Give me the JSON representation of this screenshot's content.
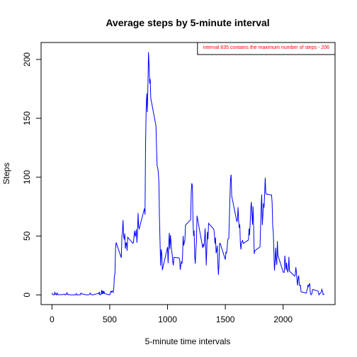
{
  "chart_data": {
    "type": "line",
    "title": "Average steps by 5-minute interval",
    "x_label": "5-minute time intervals",
    "y_label": "Steps",
    "legend_text": "interval 835 contains the maximum number of steps -  206",
    "legend_position": "topright",
    "legend_text_color": "#ff0000",
    "xlim": [
      -94.2,
      2449.2
    ],
    "ylim": [
      -8.25,
      214.4
    ],
    "xticks": [
      0,
      500,
      1000,
      1500,
      2000
    ],
    "yticks": [
      0,
      50,
      100,
      150,
      200
    ],
    "series": [
      {
        "color": "#0000ff",
        "x": [
          0,
          5,
          10,
          15,
          20,
          25,
          30,
          35,
          40,
          45,
          50,
          55,
          100,
          105,
          110,
          115,
          120,
          125,
          130,
          135,
          140,
          145,
          150,
          155,
          200,
          205,
          210,
          215,
          220,
          225,
          230,
          235,
          240,
          245,
          250,
          255,
          300,
          305,
          310,
          315,
          320,
          325,
          330,
          335,
          340,
          345,
          350,
          355,
          400,
          405,
          410,
          415,
          420,
          425,
          430,
          435,
          440,
          445,
          450,
          455,
          500,
          505,
          510,
          515,
          520,
          525,
          530,
          535,
          540,
          545,
          550,
          555,
          600,
          605,
          610,
          615,
          620,
          625,
          630,
          635,
          640,
          645,
          650,
          655,
          700,
          705,
          710,
          715,
          720,
          725,
          730,
          735,
          740,
          745,
          750,
          755,
          800,
          805,
          810,
          815,
          820,
          825,
          830,
          835,
          840,
          845,
          850,
          855,
          900,
          905,
          910,
          915,
          920,
          925,
          930,
          935,
          940,
          945,
          950,
          955,
          1000,
          1005,
          1010,
          1015,
          1020,
          1025,
          1030,
          1035,
          1040,
          1045,
          1050,
          1055,
          1100,
          1105,
          1110,
          1115,
          1120,
          1125,
          1130,
          1135,
          1140,
          1145,
          1150,
          1155,
          1200,
          1205,
          1210,
          1215,
          1220,
          1225,
          1230,
          1235,
          1240,
          1245,
          1250,
          1255,
          1300,
          1305,
          1310,
          1315,
          1320,
          1325,
          1330,
          1335,
          1340,
          1345,
          1350,
          1355,
          1400,
          1405,
          1410,
          1415,
          1420,
          1425,
          1430,
          1435,
          1440,
          1445,
          1450,
          1455,
          1500,
          1505,
          1510,
          1515,
          1520,
          1525,
          1530,
          1535,
          1540,
          1545,
          1550,
          1555,
          1600,
          1605,
          1610,
          1615,
          1620,
          1625,
          1630,
          1635,
          1640,
          1645,
          1650,
          1655,
          1700,
          1705,
          1710,
          1715,
          1720,
          1725,
          1730,
          1735,
          1740,
          1745,
          1750,
          1755,
          1800,
          1805,
          1810,
          1815,
          1820,
          1825,
          1830,
          1835,
          1840,
          1845,
          1850,
          1855,
          1900,
          1905,
          1910,
          1915,
          1920,
          1925,
          1930,
          1935,
          1940,
          1945,
          1950,
          1955,
          2000,
          2005,
          2010,
          2015,
          2020,
          2025,
          2030,
          2035,
          2040,
          2045,
          2050,
          2055,
          2100,
          2105,
          2110,
          2115,
          2120,
          2125,
          2130,
          2135,
          2140,
          2145,
          2150,
          2155,
          2200,
          2205,
          2210,
          2215,
          2220,
          2225,
          2230,
          2235,
          2240,
          2245,
          2250,
          2255,
          2300,
          2305,
          2310,
          2315,
          2320,
          2325,
          2330,
          2335,
          2340,
          2345,
          2350,
          2355
        ],
        "values": [
          1.7,
          0.3,
          0.1,
          0.2,
          0.1,
          2.1,
          0.5,
          0.9,
          0,
          1.5,
          0.3,
          0.1,
          0.3,
          0.7,
          0.2,
          0.3,
          0,
          1.1,
          1.8,
          0.2,
          0.2,
          0.4,
          0.3,
          0,
          0,
          0,
          1.1,
          0,
          0,
          0.1,
          0,
          0.2,
          0,
          0,
          1.5,
          0.9,
          0,
          0,
          0,
          0,
          0.2,
          0.6,
          1.6,
          0.6,
          0.5,
          0.1,
          0,
          0,
          1.2,
          0.9,
          2.6,
          0,
          0.3,
          0.4,
          4.1,
          0.7,
          3.5,
          0.8,
          3.1,
          1.1,
          0,
          1.6,
          3,
          2.2,
          3.3,
          3,
          2.1,
          6.1,
          16,
          18.3,
          39.5,
          44.5,
          31.5,
          49.3,
          53.8,
          63.5,
          50,
          47.1,
          52.2,
          39.3,
          44,
          44.2,
          37.4,
          49,
          43.8,
          44.4,
          50.5,
          54.5,
          49.9,
          51,
          55.7,
          44.3,
          52.3,
          69.5,
          57.8,
          56.2,
          73.4,
          68.2,
          129.4,
          157.5,
          171.2,
          155.4,
          177.3,
          206.2,
          195.9,
          179.6,
          183.4,
          167,
          143.5,
          124,
          109.1,
          108.1,
          103.7,
          96,
          66.2,
          45.2,
          24.8,
          38.8,
          35,
          21.1,
          40.6,
          27,
          42.4,
          52.7,
          38.9,
          50.8,
          44.3,
          37.4,
          34.7,
          28.3,
          25.1,
          31.9,
          31.4,
          29.7,
          21.3,
          25.5,
          28.4,
          26.5,
          33.4,
          50,
          42,
          44.6,
          46,
          59.2,
          63.9,
          87.6,
          94.8,
          92.8,
          63.4,
          50.2,
          54.5,
          32.4,
          26.5,
          37.7,
          45.1,
          67.3,
          42.3,
          39.9,
          43.3,
          41,
          46.2,
          56.4,
          42.8,
          25.1,
          40,
          53.5,
          47.3,
          60.8,
          55.8,
          52,
          43.6,
          48.7,
          35.5,
          37.5,
          41.8,
          27.5,
          17.1,
          26.1,
          43.6,
          43.8,
          30,
          36.1,
          35.5,
          38.8,
          46,
          47.8,
          48.1,
          65.3,
          82.9,
          98.7,
          102.1,
          84,
          62.1,
          64.1,
          74.5,
          63.2,
          56.9,
          59.8,
          43.9,
          38.6,
          44.7,
          45.5,
          46.2,
          43.7,
          46.6,
          56.3,
          50.7,
          61.2,
          73.4,
          79,
          68.9,
          59.7,
          75.1,
          56.5,
          34.8,
          37.5,
          40.7,
          58,
          74.7,
          85.3,
          59.3,
          67.8,
          77.7,
          74.2,
          85.3,
          99.5,
          86.6,
          85.6,
          84.9,
          77.8,
          58,
          53.4,
          36.3,
          20.7,
          27.4,
          40,
          30.2,
          25.5,
          45.7,
          33.5,
          19.6,
          19,
          19.3,
          33.3,
          26.8,
          21.2,
          27.3,
          21.3,
          19.5,
          21.3,
          32.3,
          20.2,
          15.9,
          17.2,
          23.5,
          19.2,
          12.5,
          8,
          14.7,
          16.3,
          8.7,
          7.8,
          8.1,
          2.6,
          1.5,
          3.7,
          4.8,
          8.5,
          7.1,
          8.7,
          9.8,
          2.2,
          0.3,
          0.1,
          1.6,
          4.6,
          3.3,
          2.8,
          0,
          0.8,
          1,
          1.6,
          2.6,
          4.7,
          3.3,
          0.6,
          0.2,
          1.1
        ]
      }
    ]
  }
}
